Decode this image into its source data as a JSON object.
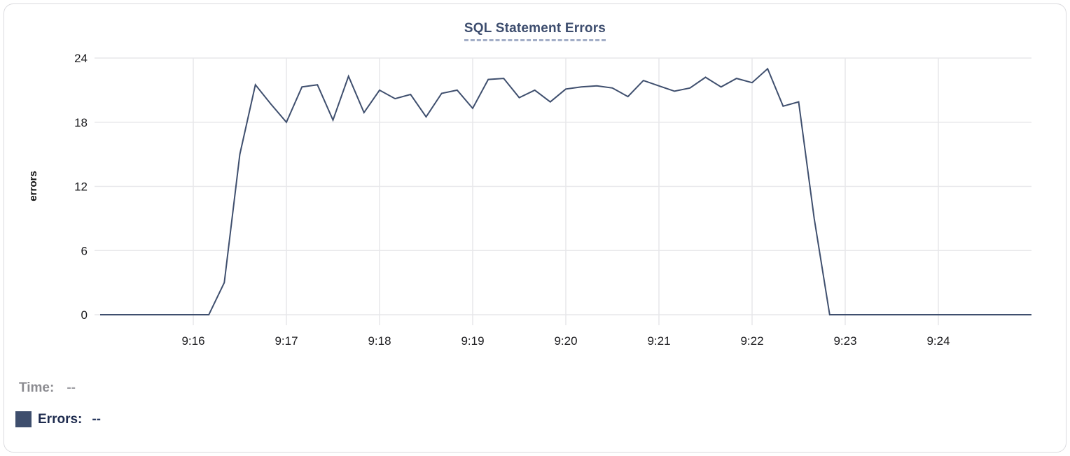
{
  "card": {
    "title": "SQL Statement Errors"
  },
  "colors": {
    "title": "#3d4d6e",
    "title_underline": "#a3aec7",
    "line": "#3f4f6e",
    "grid": "#e7e7ea",
    "tick_label": "#1b1b1e",
    "legend_swatch": "#3e4e6d",
    "card_border": "#dadade"
  },
  "legend": {
    "time_label": "Time:",
    "time_value": "--",
    "errors_label": "Errors:",
    "errors_value": "--"
  },
  "chart_data": {
    "type": "line",
    "title": "SQL Statement Errors",
    "xlabel": "",
    "ylabel": "errors",
    "series_name": "Errors",
    "ylim": [
      0,
      24
    ],
    "y_ticks": [
      0,
      6,
      12,
      18,
      24
    ],
    "x_ticks": [
      "9:16",
      "9:17",
      "9:18",
      "9:19",
      "9:20",
      "9:21",
      "9:22",
      "9:23",
      "9:24"
    ],
    "x_range": [
      "9:15:00",
      "9:25:00"
    ],
    "interval_seconds": 10,
    "grid": true,
    "legend_position": "bottom-left",
    "line_color": "#3f4f6e",
    "grid_color": "#e7e7ea",
    "points": [
      [
        "9:15:00",
        0
      ],
      [
        "9:15:10",
        0
      ],
      [
        "9:15:20",
        0
      ],
      [
        "9:15:30",
        0
      ],
      [
        "9:15:40",
        0
      ],
      [
        "9:15:50",
        0
      ],
      [
        "9:16:00",
        0
      ],
      [
        "9:16:10",
        0
      ],
      [
        "9:16:20",
        3
      ],
      [
        "9:16:30",
        15
      ],
      [
        "9:16:40",
        21.5
      ],
      [
        "9:16:50",
        19.7
      ],
      [
        "9:17:00",
        18
      ],
      [
        "9:17:10",
        21.3
      ],
      [
        "9:17:20",
        21.5
      ],
      [
        "9:17:30",
        18.2
      ],
      [
        "9:17:40",
        22.3
      ],
      [
        "9:17:50",
        18.9
      ],
      [
        "9:18:00",
        21
      ],
      [
        "9:18:10",
        20.2
      ],
      [
        "9:18:20",
        20.6
      ],
      [
        "9:18:30",
        18.5
      ],
      [
        "9:18:40",
        20.7
      ],
      [
        "9:18:50",
        21
      ],
      [
        "9:19:00",
        19.3
      ],
      [
        "9:19:10",
        22
      ],
      [
        "9:19:20",
        22.1
      ],
      [
        "9:19:30",
        20.3
      ],
      [
        "9:19:40",
        21
      ],
      [
        "9:19:50",
        19.9
      ],
      [
        "9:20:00",
        21.1
      ],
      [
        "9:20:10",
        21.3
      ],
      [
        "9:20:20",
        21.4
      ],
      [
        "9:20:30",
        21.2
      ],
      [
        "9:20:40",
        20.4
      ],
      [
        "9:20:50",
        21.9
      ],
      [
        "9:21:00",
        21.4
      ],
      [
        "9:21:10",
        20.9
      ],
      [
        "9:21:20",
        21.2
      ],
      [
        "9:21:30",
        22.2
      ],
      [
        "9:21:40",
        21.3
      ],
      [
        "9:21:50",
        22.1
      ],
      [
        "9:22:00",
        21.7
      ],
      [
        "9:22:10",
        23
      ],
      [
        "9:22:20",
        19.5
      ],
      [
        "9:22:30",
        19.9
      ],
      [
        "9:22:40",
        9
      ],
      [
        "9:22:50",
        0
      ],
      [
        "9:23:00",
        0
      ],
      [
        "9:23:10",
        0
      ],
      [
        "9:23:20",
        0
      ],
      [
        "9:23:30",
        0
      ],
      [
        "9:23:40",
        0
      ],
      [
        "9:23:50",
        0
      ],
      [
        "9:24:00",
        0
      ],
      [
        "9:24:10",
        0
      ],
      [
        "9:24:20",
        0
      ],
      [
        "9:24:30",
        0
      ],
      [
        "9:24:40",
        0
      ],
      [
        "9:24:50",
        0
      ],
      [
        "9:25:00",
        0
      ]
    ]
  }
}
